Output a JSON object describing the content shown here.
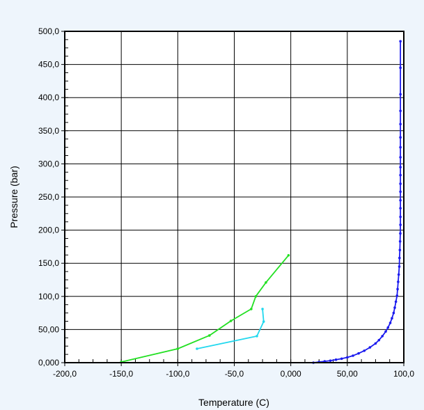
{
  "chart_data": {
    "type": "line",
    "title": "",
    "xlabel": "Temperature (C)",
    "ylabel": "Pressure (bar)",
    "xlim": [
      -200,
      100
    ],
    "ylim": [
      0,
      500
    ],
    "grid": true,
    "legend": "none",
    "x_ticks": [
      -200,
      -150,
      -100,
      -50,
      0,
      50,
      100
    ],
    "x_tick_labels": [
      "-200,0",
      "-150,0",
      "-100,0",
      "-50,0",
      "0,000",
      "50,00",
      "100,0"
    ],
    "y_ticks": [
      0,
      50,
      100,
      150,
      200,
      250,
      300,
      350,
      400,
      450,
      500
    ],
    "y_tick_labels": [
      "0,000",
      "50,00",
      "100,0",
      "150,0",
      "200,0",
      "250,0",
      "300,0",
      "350,0",
      "400,0",
      "450,0",
      "500,0"
    ],
    "colors": {
      "background": "#eef5fc",
      "plot_background": "#ffffff",
      "axis": "#000000",
      "grid": "#000000"
    },
    "series": [
      {
        "color": "#22e022",
        "x": [
          -150,
          -100,
          -72,
          -53,
          -35,
          -31,
          -22,
          -2
        ],
        "y": [
          1,
          21,
          41,
          63,
          81,
          100,
          121,
          162
        ]
      },
      {
        "color": "#22d8ee",
        "x": [
          -83,
          -30,
          -24,
          -25
        ],
        "y": [
          21,
          40,
          62,
          81
        ]
      },
      {
        "color": "#1a1aee",
        "x": [
          20,
          25,
          30,
          35,
          40,
          45,
          50,
          55,
          60,
          65,
          70,
          75,
          78,
          81,
          84,
          86,
          88,
          89.5,
          91,
          92,
          93,
          94,
          94.5,
          95,
          95.5,
          96,
          96.2,
          96.5,
          96.7,
          96.9,
          97,
          97,
          97,
          97,
          97,
          97,
          97,
          97,
          97,
          97,
          97,
          97,
          97,
          97,
          97,
          97
        ],
        "y": [
          0,
          1,
          2,
          3,
          4.5,
          6,
          8,
          10.5,
          14,
          18,
          23,
          29,
          34,
          40,
          47,
          53,
          60,
          67,
          75,
          83,
          92,
          101,
          111,
          122,
          133,
          145,
          158,
          170,
          183,
          195,
          208,
          220,
          233,
          245,
          258,
          270,
          283,
          295,
          310,
          325,
          340,
          360,
          380,
          405,
          445,
          485
        ]
      }
    ]
  }
}
